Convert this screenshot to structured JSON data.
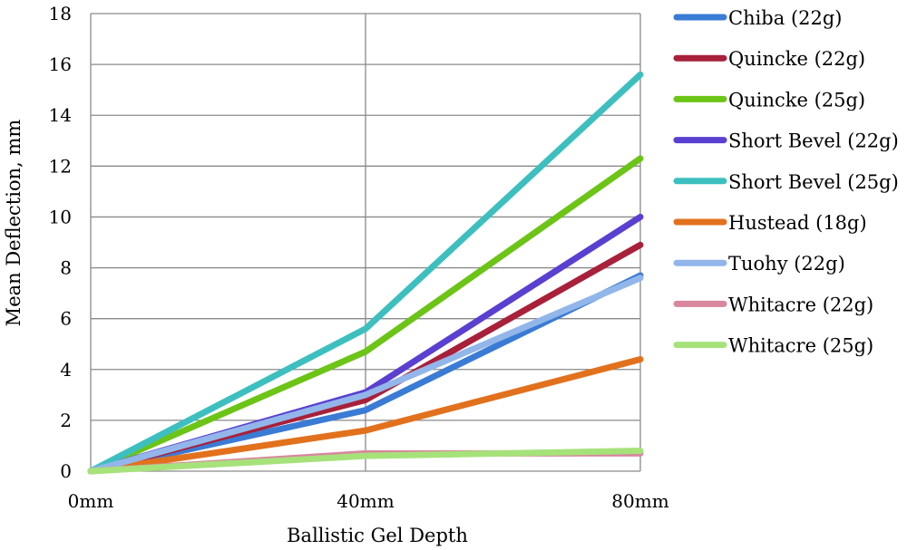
{
  "chart_data": {
    "type": "line",
    "title": "",
    "xlabel": "Ballistic Gel Depth",
    "ylabel": "Mean Deflection, mm",
    "x": [
      "0mm",
      "40mm",
      "80mm"
    ],
    "ylim": [
      0,
      18
    ],
    "yticks": [
      0,
      2,
      4,
      6,
      8,
      10,
      12,
      14,
      16,
      18
    ],
    "grid": "horizontal and vertical",
    "legend_position": "right",
    "series": [
      {
        "name": "Chiba (22g)",
        "color": "#3a7bd5",
        "values": [
          0,
          2.4,
          7.7
        ]
      },
      {
        "name": "Quincke (22g)",
        "color": "#a8203a",
        "values": [
          0,
          2.8,
          8.9
        ]
      },
      {
        "name": "Quincke (25g)",
        "color": "#6cc417",
        "values": [
          0,
          4.7,
          12.3
        ]
      },
      {
        "name": "Short Bevel (22g)",
        "color": "#5b3fd0",
        "values": [
          0,
          3.1,
          10.0
        ]
      },
      {
        "name": "Short Bevel (25g)",
        "color": "#3dbfbf",
        "values": [
          0,
          5.6,
          15.6
        ]
      },
      {
        "name": "Hustead (18g)",
        "color": "#e2711d",
        "values": [
          0,
          1.6,
          4.4
        ]
      },
      {
        "name": "Tuohy (22g)",
        "color": "#92b6ea",
        "values": [
          0,
          3.0,
          7.6
        ]
      },
      {
        "name": "Whitacre (22g)",
        "color": "#d9869f",
        "values": [
          0,
          0.7,
          0.7
        ]
      },
      {
        "name": "Whitacre (25g)",
        "color": "#a6e27a",
        "values": [
          0,
          0.6,
          0.8
        ]
      }
    ]
  }
}
